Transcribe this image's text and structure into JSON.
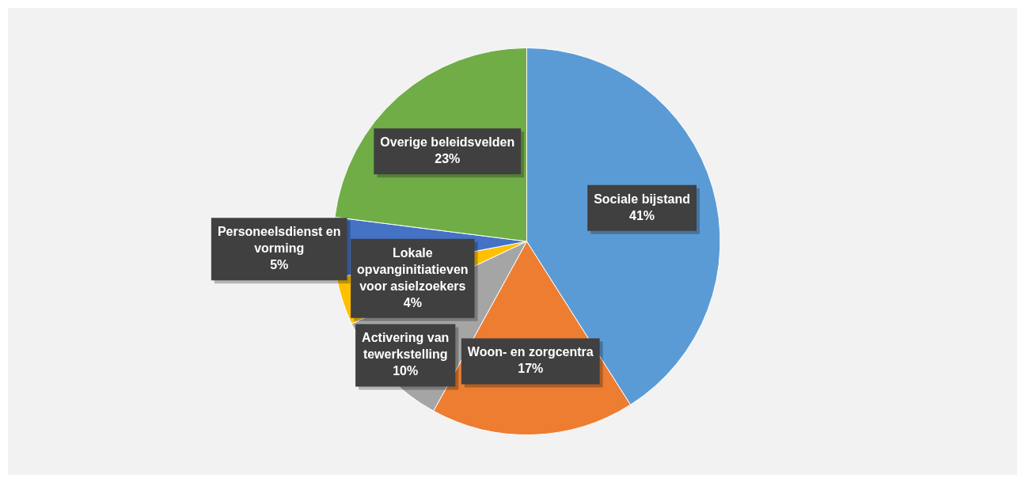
{
  "chart_data": {
    "type": "pie",
    "categories": [
      "Sociale bijstand",
      "Woon- en zorgcentra",
      "Activering van tewerkstelling",
      "Lokale opvanginitiatieven voor asielzoekers",
      "Personeelsdienst en vorming",
      "Overige beleidsvelden"
    ],
    "values": [
      41,
      17,
      10,
      4,
      5,
      23
    ],
    "colors": [
      "#5b9bd5",
      "#ed7d31",
      "#a5a5a5",
      "#ffc000",
      "#4472c4",
      "#70ad47"
    ],
    "value_labels": [
      "41%",
      "17%",
      "10%",
      "4%",
      "5%",
      "23%"
    ],
    "legend": false
  }
}
